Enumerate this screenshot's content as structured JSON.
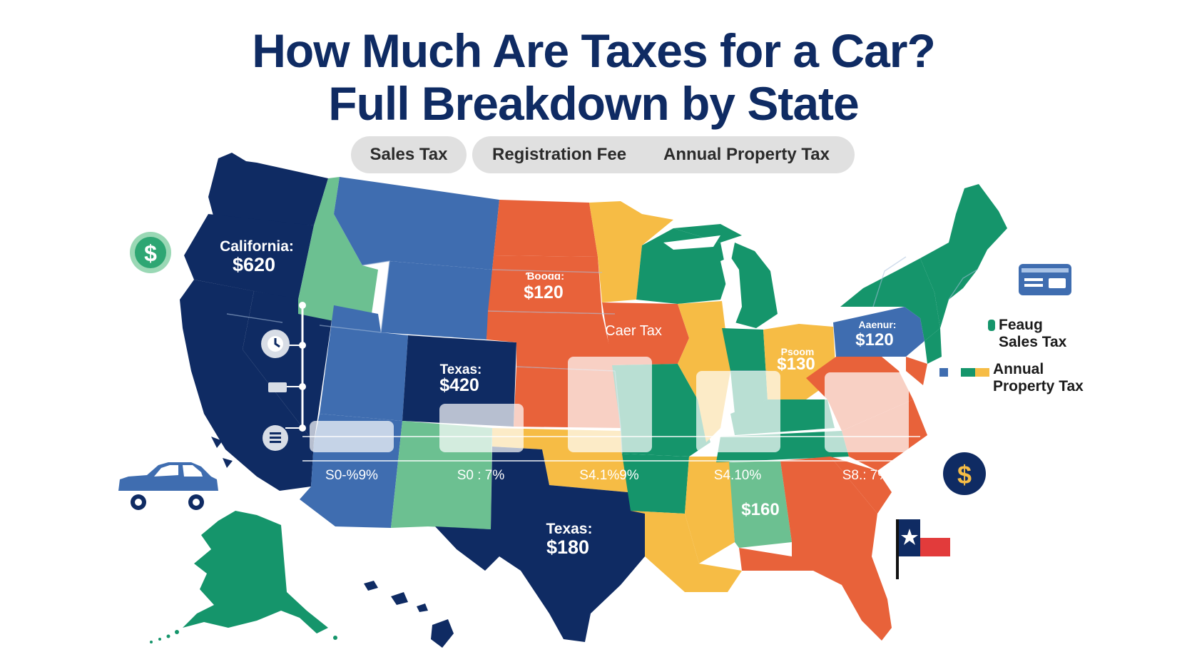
{
  "title": {
    "line1": "How Much Are Taxes for a Car?",
    "line2": "Full Breakdown by State"
  },
  "tabs": {
    "sales": "Sales Tax",
    "registration": "Registration Fee",
    "property": "Annual Property Tax"
  },
  "labels": {
    "california_name": "California:",
    "california_value": "$620",
    "dakota_name": "Ɓooɑɑ:",
    "dakota_value": "$120",
    "iowa_caption": "Caer Tax",
    "texas_north_name": "Texas:",
    "texas_north_value": "$420",
    "texas_name": "Texas:",
    "texas_value": "$180",
    "ohio_name": "Psoom",
    "ohio_value": "$130",
    "penn_name": "Aaenur:",
    "penn_value": "$120",
    "alabama_value": "$160"
  },
  "rates": [
    "S0-%9%",
    "S0 : 7%",
    "S4.1%9%",
    "S4.10%",
    "S8.: 7%"
  ],
  "legend": {
    "item1_line1": "Feaug",
    "item1_line2": "Sales Tax",
    "item2_line1": "Annual",
    "item2_line2": "Property Tax"
  },
  "colors": {
    "navy": "#0f2b63",
    "blue": "#3f6db0",
    "orange": "#e8623a",
    "yellow": "#f6bc45",
    "green": "#15956b",
    "mint": "#6cc091"
  }
}
